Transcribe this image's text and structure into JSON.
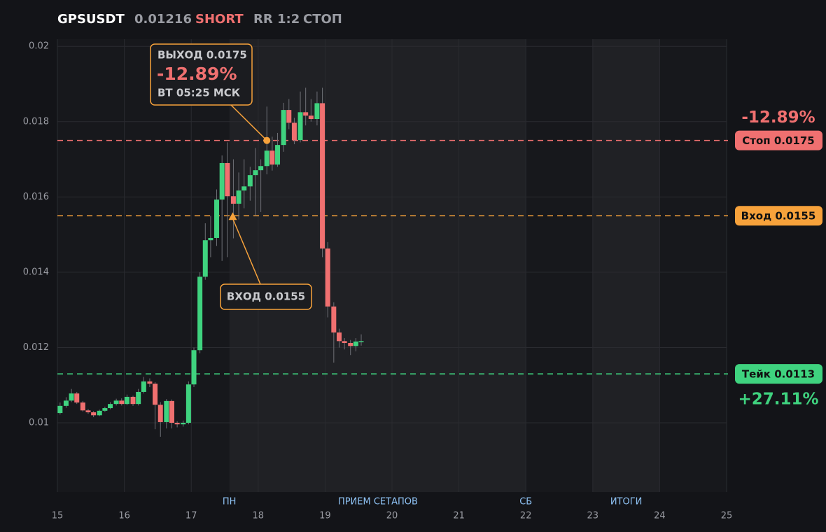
{
  "chart_data": {
    "type": "candlestick",
    "title": "GPSUSDT",
    "price": 0.01216,
    "side": "SHORT",
    "rr": "RR 1:2",
    "status": "СТОП",
    "up_color": "#3fd37f",
    "down_color": "#f07070",
    "x": [
      15.04,
      15.13,
      15.21,
      15.29,
      15.38,
      15.46,
      15.54,
      15.63,
      15.71,
      15.79,
      15.88,
      15.96,
      16.04,
      16.13,
      16.21,
      16.29,
      16.38,
      16.46,
      16.54,
      16.63,
      16.71,
      16.79,
      16.88,
      16.96,
      17.04,
      17.13,
      17.21,
      17.29,
      17.38,
      17.46,
      17.54,
      17.63,
      17.71,
      17.79,
      17.88,
      17.96,
      18.04,
      18.13,
      18.21,
      18.29,
      18.38,
      18.46,
      18.54,
      18.63,
      18.71,
      18.79,
      18.88,
      18.96,
      19.04,
      19.13,
      19.21,
      19.29,
      19.38,
      19.46,
      19.54
    ],
    "open": [
      0.01026,
      0.01045,
      0.01059,
      0.01078,
      0.01054,
      0.01033,
      0.01028,
      0.0102,
      0.01032,
      0.01039,
      0.0105,
      0.01059,
      0.0105,
      0.01069,
      0.0105,
      0.01082,
      0.0111,
      0.01104,
      0.01048,
      0.01002,
      0.01058,
      0.01,
      0.00996,
      0.01,
      0.01102,
      0.01193,
      0.01388,
      0.01485,
      0.01491,
      0.01593,
      0.0169,
      0.01602,
      0.01582,
      0.01617,
      0.01628,
      0.01658,
      0.01671,
      0.01682,
      0.01723,
      0.01686,
      0.01738,
      0.01831,
      0.01797,
      0.01751,
      0.01825,
      0.01816,
      0.01807,
      0.01849,
      0.01463,
      0.01309,
      0.0124,
      0.01217,
      0.01212,
      0.01204,
      0.01216
    ],
    "high": [
      0.01054,
      0.01068,
      0.0109,
      0.01082,
      0.01058,
      0.01037,
      0.01031,
      0.01035,
      0.01043,
      0.01055,
      0.01064,
      0.01065,
      0.01075,
      0.01072,
      0.0109,
      0.01122,
      0.01118,
      0.01108,
      0.01055,
      0.01063,
      0.01062,
      0.01004,
      0.01006,
      0.0111,
      0.012,
      0.014,
      0.0153,
      0.0155,
      0.0162,
      0.0171,
      0.01745,
      0.017,
      0.01665,
      0.017,
      0.0168,
      0.0173,
      0.017,
      0.0184,
      0.0176,
      0.0177,
      0.0185,
      0.0186,
      0.0181,
      0.0188,
      0.0189,
      0.0186,
      0.0188,
      0.0189,
      0.0148,
      0.0132,
      0.0125,
      0.01225,
      0.0122,
      0.01225,
      0.01235
    ],
    "low": [
      0.01022,
      0.0104,
      0.01055,
      0.0105,
      0.0103,
      0.01024,
      0.01015,
      0.01018,
      0.01029,
      0.01036,
      0.01046,
      0.01046,
      0.01047,
      0.01045,
      0.01046,
      0.01078,
      0.01095,
      0.00983,
      0.00963,
      0.00985,
      0.00985,
      0.00988,
      0.0099,
      0.00996,
      0.01095,
      0.01185,
      0.0138,
      0.0144,
      0.0147,
      0.0143,
      0.0144,
      0.0149,
      0.0154,
      0.0157,
      0.0159,
      0.0155,
      0.0156,
      0.0166,
      0.0167,
      0.0168,
      0.0172,
      0.0178,
      0.0174,
      0.01745,
      0.0179,
      0.018,
      0.0179,
      0.0144,
      0.0128,
      0.0116,
      0.012,
      0.01195,
      0.0118,
      0.0119,
      0.01205
    ],
    "close": [
      0.01045,
      0.01059,
      0.01078,
      0.01054,
      0.01033,
      0.01028,
      0.0102,
      0.01032,
      0.01039,
      0.0105,
      0.01059,
      0.0105,
      0.01069,
      0.0105,
      0.01082,
      0.0111,
      0.01104,
      0.01048,
      0.01002,
      0.01058,
      0.01,
      0.00996,
      0.01,
      0.01102,
      0.01193,
      0.01388,
      0.01485,
      0.01491,
      0.01593,
      0.0169,
      0.01602,
      0.01582,
      0.01617,
      0.01628,
      0.01658,
      0.01671,
      0.01682,
      0.01723,
      0.01686,
      0.01738,
      0.01831,
      0.01797,
      0.01751,
      0.01825,
      0.01816,
      0.01807,
      0.01849,
      0.01463,
      0.01309,
      0.0124,
      0.01217,
      0.01212,
      0.01204,
      0.01216,
      0.01217
    ],
    "xlim": [
      15,
      25
    ],
    "xticks": [
      15,
      16,
      17,
      18,
      19,
      20,
      21,
      22,
      23,
      24,
      25
    ],
    "ylim": [
      0.00816,
      0.02019
    ],
    "yticks": [
      0.01,
      0.012,
      0.014,
      0.016,
      0.018,
      0.02
    ],
    "grid": true,
    "bands": [
      [
        17.57,
        22
      ],
      [
        23,
        24
      ]
    ],
    "sessions": [
      {
        "label": "ПН",
        "x": 17.57
      },
      {
        "label": "ПРИЕМ СЕТАПОВ",
        "x": 19.79
      },
      {
        "label": "СБ",
        "x": 22
      },
      {
        "label": "ИТОГИ",
        "x": 23.5
      }
    ],
    "levels": [
      {
        "name": "Стоп 0.0175",
        "value": 0.0175,
        "color": "#f07070",
        "pct": "-12.89%"
      },
      {
        "name": "Вход 0.0155",
        "value": 0.0155,
        "color": "#f7a23b"
      },
      {
        "name": "Тейк 0.0113",
        "value": 0.0113,
        "color": "#3fd37f",
        "pct": "+27.11%"
      }
    ],
    "exit": {
      "label": "ВЫХОД 0.0175",
      "pct": "-12.89%",
      "time": "ВТ 05:25 МСК",
      "x": 18.13,
      "y": 0.0175
    },
    "entry": {
      "label": "ВХОД 0.0155",
      "x": 17.62,
      "y": 0.0155
    }
  }
}
